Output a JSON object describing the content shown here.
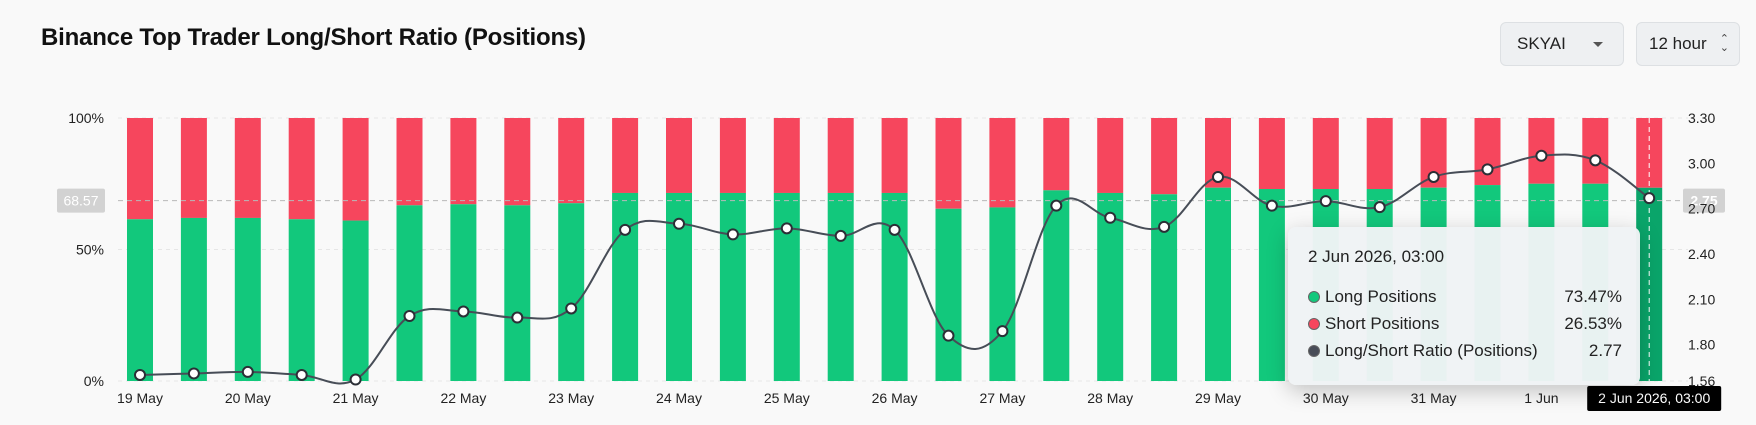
{
  "header": {
    "title": "Binance Top Trader Long/Short Ratio (Positions)",
    "symbol_select": "SKYAI",
    "interval_select": "12 hour"
  },
  "colors": {
    "long": "#12c87c",
    "short": "#f6465d",
    "ratio_line": "#474d57",
    "highlight_long": "#0aa56a"
  },
  "icons": {
    "symbol_caret": "caret-down-icon",
    "interval_stepper": "updown-arrows-icon"
  },
  "crosshair": {
    "left_label": "68.57",
    "right_label": "2.75",
    "x_label": "2 Jun 2026, 03:00"
  },
  "tooltip": {
    "title": "2 Jun 2026, 03:00",
    "rows": [
      {
        "label": "Long Positions",
        "value": "73.47%",
        "color": "#12c87c"
      },
      {
        "label": "Short Positions",
        "value": "26.53%",
        "color": "#f6465d"
      },
      {
        "label": "Long/Short Ratio (Positions)",
        "value": "2.77",
        "color": "#474d57"
      }
    ]
  },
  "chart_data": {
    "type": "bar",
    "title": "Binance Top Trader Long/Short Ratio (Positions)",
    "x_tick_labels": [
      "19 May",
      "20 May",
      "21 May",
      "22 May",
      "23 May",
      "24 May",
      "25 May",
      "26 May",
      "27 May",
      "28 May",
      "29 May",
      "30 May",
      "31 May",
      "1 Jun"
    ],
    "categories": [
      "19 May 03:00",
      "19 May 15:00",
      "20 May 03:00",
      "20 May 15:00",
      "21 May 03:00",
      "21 May 15:00",
      "22 May 03:00",
      "22 May 15:00",
      "23 May 03:00",
      "23 May 15:00",
      "24 May 03:00",
      "24 May 15:00",
      "25 May 03:00",
      "25 May 15:00",
      "26 May 03:00",
      "26 May 15:00",
      "27 May 03:00",
      "27 May 15:00",
      "28 May 03:00",
      "28 May 15:00",
      "29 May 03:00",
      "29 May 15:00",
      "30 May 03:00",
      "30 May 15:00",
      "31 May 03:00",
      "31 May 15:00",
      "1 Jun 03:00",
      "1 Jun 15:00",
      "2 Jun 03:00"
    ],
    "series": [
      {
        "name": "Long Positions",
        "axis": "left",
        "stacked": true,
        "values": [
          61.5,
          62.0,
          62.0,
          61.5,
          61.0,
          66.8,
          67.2,
          66.8,
          67.6,
          71.5,
          71.5,
          71.5,
          71.5,
          71.5,
          71.5,
          65.5,
          66.0,
          72.5,
          71.5,
          71.0,
          73.5,
          73.0,
          73.0,
          73.0,
          73.5,
          74.5,
          75.0,
          75.0,
          73.47
        ]
      },
      {
        "name": "Short Positions",
        "axis": "left",
        "stacked": true,
        "values": [
          38.5,
          38.0,
          38.0,
          38.5,
          39.0,
          33.2,
          32.8,
          33.2,
          32.4,
          28.5,
          28.5,
          28.5,
          28.5,
          28.5,
          28.5,
          34.5,
          34.0,
          27.5,
          28.5,
          29.0,
          26.5,
          27.0,
          27.0,
          27.0,
          26.5,
          25.5,
          25.0,
          25.0,
          26.53
        ]
      },
      {
        "name": "Long/Short Ratio (Positions)",
        "axis": "right",
        "type": "line",
        "values": [
          1.6,
          1.61,
          1.62,
          1.6,
          1.57,
          1.99,
          2.02,
          1.98,
          2.04,
          2.56,
          2.6,
          2.53,
          2.57,
          2.52,
          2.56,
          1.86,
          1.89,
          2.72,
          2.64,
          2.58,
          2.91,
          2.72,
          2.75,
          2.71,
          2.91,
          2.96,
          3.05,
          3.02,
          2.77
        ]
      }
    ],
    "y_left": {
      "ticks": [
        "0%",
        "50%",
        "100%"
      ],
      "range": [
        0,
        100
      ]
    },
    "y_right": {
      "ticks": [
        "1.56",
        "1.80",
        "2.10",
        "2.40",
        "2.70",
        "3.00",
        "3.30"
      ],
      "range": [
        1.56,
        3.3
      ]
    },
    "highlighted_index": 28,
    "dimmed_from_index": 22,
    "grid": "horizontal dashed"
  }
}
